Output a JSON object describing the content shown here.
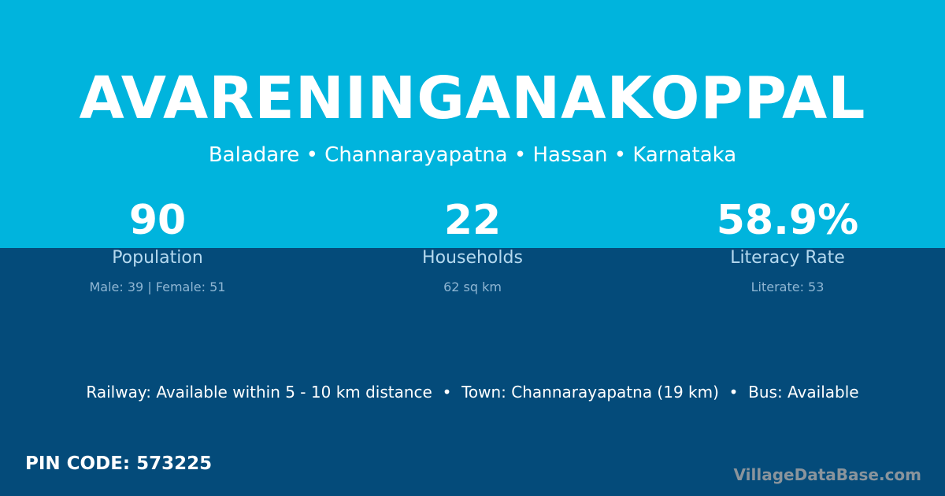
{
  "colors": {
    "top_background": "#00b4dd",
    "bottom_background": "#044b7a",
    "brand_text": "#8a949c"
  },
  "village": {
    "name": "AVARENINGANAKOPPAL",
    "location": "Baladare • Channarayapatna • Hassan • Karnataka"
  },
  "stats": [
    {
      "value": "90",
      "label": "Population",
      "detail": "Male: 39 | Female: 51"
    },
    {
      "value": "22",
      "label": "Households",
      "detail": "62 sq km"
    },
    {
      "value": "58.9%",
      "label": "Literacy Rate",
      "detail": "Literate: 53"
    }
  ],
  "info_line": "Railway: Available within 5 - 10 km distance  •  Town: Channarayapatna (19 km)  •  Bus: Available",
  "pin_code": "PIN CODE: 573225",
  "brand": "VillageDataBase.com"
}
